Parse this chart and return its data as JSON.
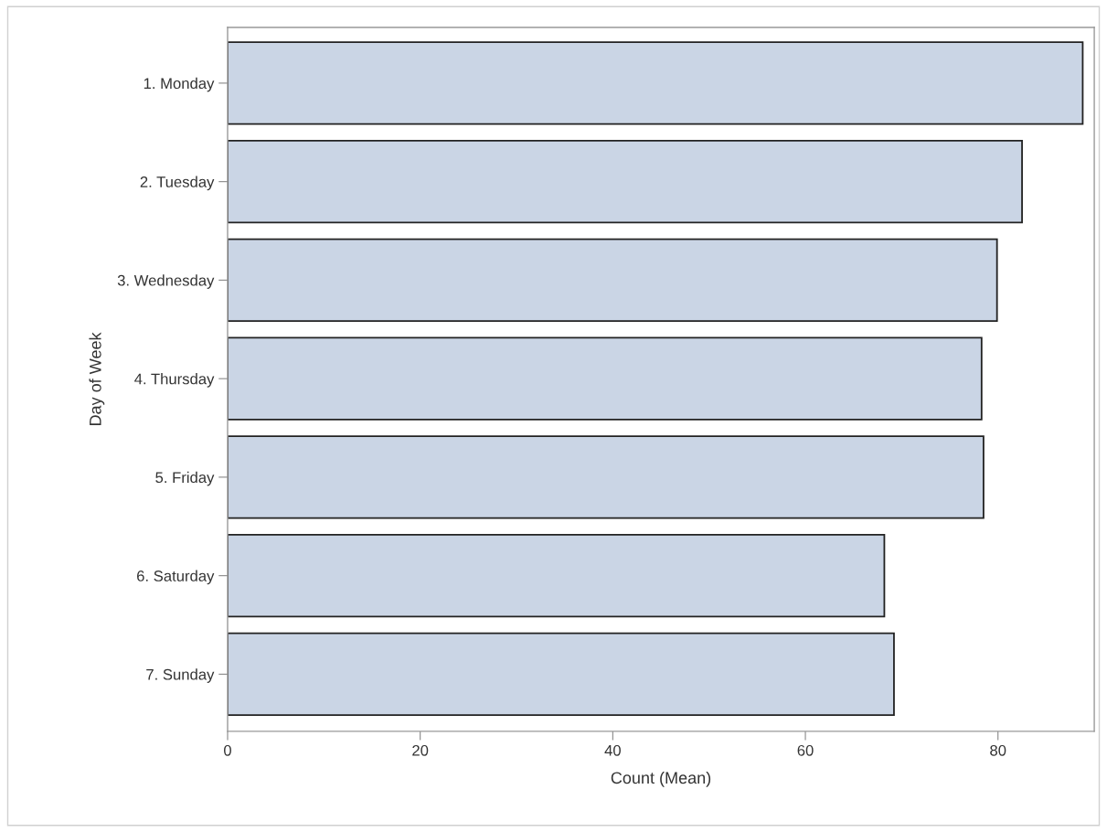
{
  "chart_data": {
    "type": "bar",
    "orientation": "horizontal",
    "xlabel": "Count (Mean)",
    "ylabel": "Day of Week",
    "categories": [
      "1. Monday",
      "2. Tuesday",
      "3. Wednesday",
      "4. Thursday",
      "5. Friday",
      "6. Saturday",
      "7. Sunday"
    ],
    "values": [
      88.8,
      82.5,
      79.9,
      78.3,
      78.5,
      68.2,
      69.2
    ],
    "color": "#cad5e5",
    "xlim": [
      0,
      90
    ],
    "xticks": [
      0,
      20,
      40,
      60,
      80
    ],
    "grid": false,
    "legend": false
  }
}
